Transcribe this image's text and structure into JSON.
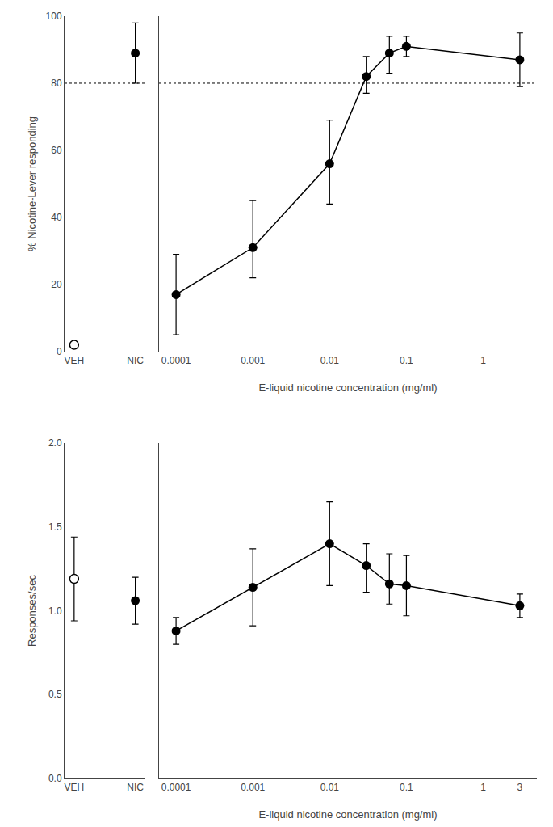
{
  "chart_data": [
    {
      "type": "scatter",
      "ylabel": "% Nicotine-Lever responding",
      "categories": [
        "VEH",
        "NIC"
      ],
      "series": [
        {
          "marker": "open",
          "values": [
            2,
            null
          ]
        },
        {
          "marker": "filled",
          "values": [
            null,
            89
          ],
          "error_lo": [
            null,
            9
          ],
          "error_hi": [
            null,
            9
          ]
        }
      ],
      "color": "black",
      "ylim": [
        0,
        100
      ],
      "yticks": [
        0,
        20,
        40,
        60,
        80,
        100
      ],
      "grid": false,
      "reference_lines": [
        {
          "y": 80,
          "line_style": "dotted"
        }
      ]
    },
    {
      "type": "line",
      "xlabel": "E-liquid nicotine concentration (mg/ml)",
      "x": [
        0.0001,
        0.001,
        0.01,
        0.03,
        0.06,
        0.1,
        3.0
      ],
      "values": [
        17,
        31,
        56,
        82,
        89,
        91,
        87
      ],
      "error_lo": [
        12,
        9,
        12,
        5,
        6,
        3,
        8
      ],
      "error_hi": [
        12,
        14,
        13,
        6,
        5,
        3,
        8
      ],
      "marker": "filled",
      "color": "black",
      "log": "x",
      "xlim": [
        6e-05,
        5
      ],
      "xticks": [
        0.0001,
        0.001,
        0.01,
        0.1,
        1
      ],
      "ylim": [
        0,
        100
      ],
      "tick_labels": "x",
      "grid": false,
      "reference_lines": [
        {
          "y": 80,
          "line_style": "dotted"
        }
      ]
    },
    {
      "type": "scatter",
      "ylabel": "Responses/sec",
      "categories": [
        "VEH",
        "NIC"
      ],
      "series": [
        {
          "marker": "open",
          "values": [
            1.19,
            null
          ],
          "error_lo": [
            0.25,
            null
          ],
          "error_hi": [
            0.25,
            null
          ]
        },
        {
          "marker": "filled",
          "values": [
            null,
            1.06
          ],
          "error_lo": [
            null,
            0.14
          ],
          "error_hi": [
            null,
            0.14
          ]
        }
      ],
      "color": "black",
      "ylim": [
        0,
        2.0
      ],
      "yticks": [
        {
          "value": 0,
          "label": "0.0"
        },
        0.5,
        {
          "value": 1,
          "label": "1.0"
        },
        1.5,
        {
          "value": 2,
          "label": "2.0"
        }
      ],
      "grid": false
    },
    {
      "type": "line",
      "xlabel": "E-liquid nicotine concentration (mg/ml)",
      "x": [
        0.0001,
        0.001,
        0.01,
        0.03,
        0.06,
        0.1,
        3.0
      ],
      "values": [
        0.88,
        1.14,
        1.4,
        1.27,
        1.16,
        1.15,
        1.03
      ],
      "error_lo": [
        0.08,
        0.23,
        0.25,
        0.16,
        0.12,
        0.18,
        0.07
      ],
      "error_hi": [
        0.08,
        0.23,
        0.25,
        0.13,
        0.18,
        0.18,
        0.07
      ],
      "marker": "filled",
      "color": "black",
      "log": "x",
      "xlim": [
        6e-05,
        5
      ],
      "xticks": [
        0.0001,
        0.001,
        0.01,
        0.1,
        1,
        3
      ],
      "ylim": [
        0,
        2.0
      ],
      "tick_labels": "x",
      "grid": false
    }
  ]
}
